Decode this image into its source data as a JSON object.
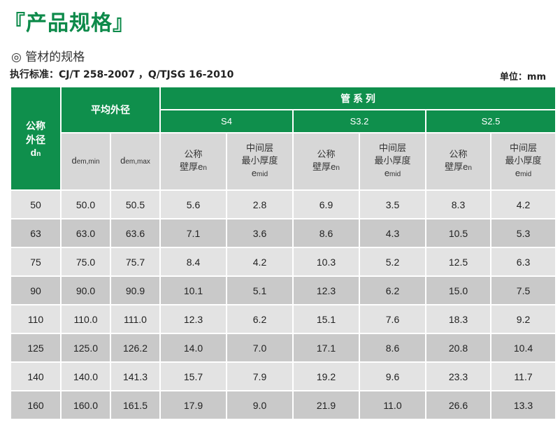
{
  "title": "『产品规格』",
  "subtitle": "◎ 管材的规格",
  "standard": "执行标准：CJ/T 258-2007 ，Q/TJSG 16-2010",
  "unit": "单位：mm",
  "table": {
    "nominal_header": [
      "公称",
      "外径",
      "d",
      "n"
    ],
    "avg_od_header": "平均外径",
    "pipe_series_header": "管 系 列",
    "series": [
      "S4",
      "S3.2",
      "S2.5"
    ],
    "dem_min": [
      "d",
      "em,min"
    ],
    "dem_max": [
      "d",
      "em,max"
    ],
    "wall_nominal": [
      "公称",
      "壁厚e",
      "n"
    ],
    "mid_min": [
      "中间层",
      "最小厚度",
      "e",
      "mid"
    ],
    "colors": {
      "header": "#0f8f4c",
      "row_light": "#e3e3e3",
      "row_dark": "#c9c9c9"
    },
    "rows": [
      [
        "50",
        "50.0",
        "50.5",
        "5.6",
        "2.8",
        "6.9",
        "3.5",
        "8.3",
        "4.2"
      ],
      [
        "63",
        "63.0",
        "63.6",
        "7.1",
        "3.6",
        "8.6",
        "4.3",
        "10.5",
        "5.3"
      ],
      [
        "75",
        "75.0",
        "75.7",
        "8.4",
        "4.2",
        "10.3",
        "5.2",
        "12.5",
        "6.3"
      ],
      [
        "90",
        "90.0",
        "90.9",
        "10.1",
        "5.1",
        "12.3",
        "6.2",
        "15.0",
        "7.5"
      ],
      [
        "110",
        "110.0",
        "111.0",
        "12.3",
        "6.2",
        "15.1",
        "7.6",
        "18.3",
        "9.2"
      ],
      [
        "125",
        "125.0",
        "126.2",
        "14.0",
        "7.0",
        "17.1",
        "8.6",
        "20.8",
        "10.4"
      ],
      [
        "140",
        "140.0",
        "141.3",
        "15.7",
        "7.9",
        "19.2",
        "9.6",
        "23.3",
        "11.7"
      ],
      [
        "160",
        "160.0",
        "161.5",
        "17.9",
        "9.0",
        "21.9",
        "11.0",
        "26.6",
        "13.3"
      ]
    ]
  }
}
